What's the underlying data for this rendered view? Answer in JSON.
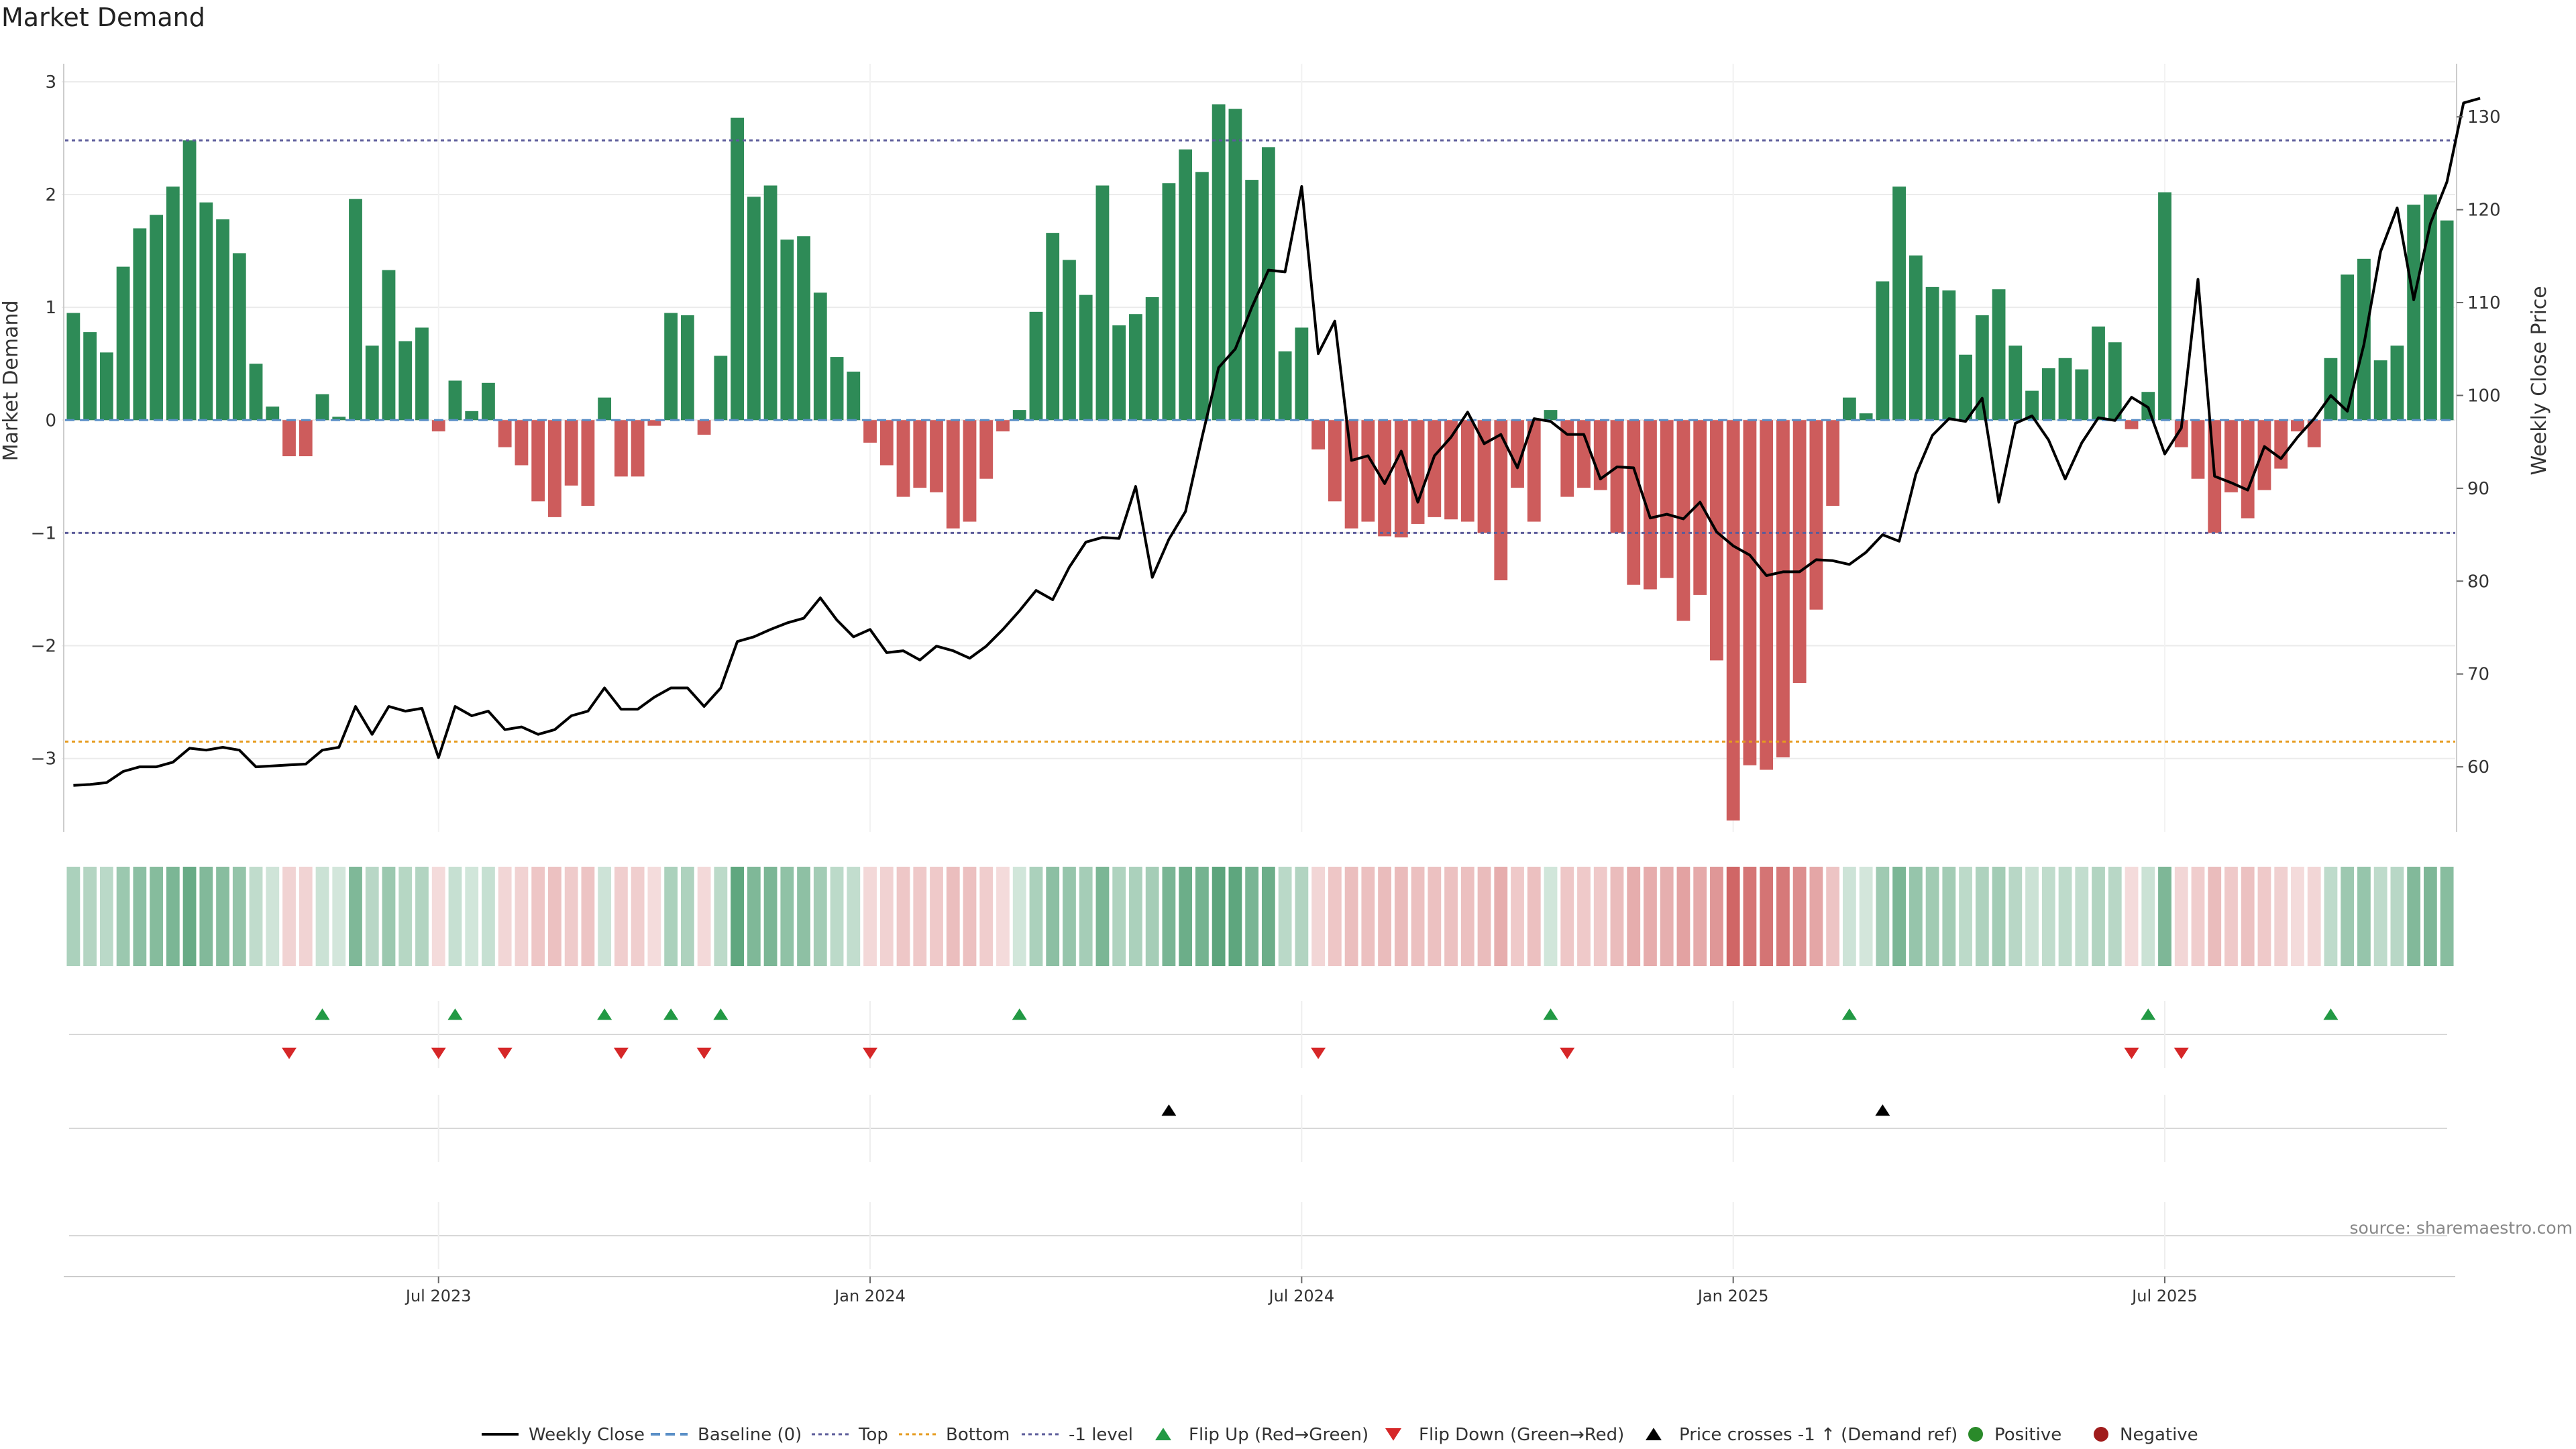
{
  "title": "Market Demand",
  "source": "source: sharemaestro.com",
  "colors": {
    "pos": "#2e8b57",
    "neg": "#cd5c5c",
    "top": "#5b5b9a",
    "bottom": "#e69b1e",
    "minus1": "#5b5b9a",
    "up": "#229944",
    "down": "#d62728",
    "price": "#000000"
  },
  "chart_data": {
    "type": "bar",
    "title": "Market Demand",
    "ylabel_left": "Market Demand",
    "ylabel_right": "Weekly Close Price",
    "ylim_left": [
      -3.65,
      3.1
    ],
    "ylim_right": [
      53,
      135
    ],
    "yticks_left": [
      3,
      2,
      1,
      0,
      -1,
      -2,
      -3
    ],
    "yticks_left_labels": [
      "3",
      "2",
      "1",
      "0",
      "−1",
      "−2",
      "−3"
    ],
    "yticks_right": [
      60,
      70,
      80,
      90,
      100,
      110,
      120,
      130
    ],
    "levels": {
      "baseline": 0,
      "top": 2.48,
      "bottom": -2.85,
      "minus_one": -1
    },
    "x_ticks": [
      {
        "index": 22,
        "label": "Jul 2023"
      },
      {
        "index": 48,
        "label": "Jan 2024"
      },
      {
        "index": 74,
        "label": "Jul 2024"
      },
      {
        "index": 100,
        "label": "Jan 2025"
      },
      {
        "index": 126,
        "label": "Jul 2025"
      }
    ],
    "weeks": 144,
    "demand": [
      0.95,
      0.78,
      0.6,
      1.36,
      1.7,
      1.82,
      2.07,
      2.48,
      1.93,
      1.78,
      1.48,
      0.5,
      0.12,
      -0.32,
      -0.32,
      0.23,
      0.03,
      1.96,
      0.66,
      1.33,
      0.7,
      0.82,
      -0.1,
      0.35,
      0.08,
      0.33,
      -0.24,
      -0.4,
      -0.72,
      -0.86,
      -0.58,
      -0.76,
      0.2,
      -0.5,
      -0.5,
      -0.05,
      0.95,
      0.93,
      -0.13,
      0.57,
      2.68,
      1.98,
      2.08,
      1.6,
      1.63,
      1.13,
      0.56,
      0.43,
      -0.2,
      -0.4,
      -0.68,
      -0.6,
      -0.64,
      -0.96,
      -0.9,
      -0.52,
      -0.1,
      0.09,
      0.96,
      1.66,
      1.42,
      1.11,
      2.08,
      0.84,
      0.94,
      1.09,
      2.1,
      2.4,
      2.2,
      2.8,
      2.76,
      2.13,
      2.42,
      0.61,
      0.82,
      -0.26,
      -0.72,
      -0.96,
      -0.9,
      -1.03,
      -1.04,
      -0.92,
      -0.86,
      -0.88,
      -0.9,
      -1.0,
      -1.42,
      -0.6,
      -0.9,
      0.09,
      -0.68,
      -0.6,
      -0.62,
      -1.0,
      -1.46,
      -1.5,
      -1.4,
      -1.78,
      -1.55,
      -2.13,
      -3.55,
      -3.06,
      -3.1,
      -2.99,
      -2.33,
      -1.68,
      -0.76,
      0.2,
      0.06,
      1.23,
      2.07,
      1.46,
      1.18,
      1.15,
      0.58,
      0.93,
      1.16,
      0.66,
      0.26,
      0.46,
      0.55,
      0.45,
      0.83,
      0.69,
      -0.08,
      0.25,
      2.02,
      -0.24,
      -0.52,
      -1.0,
      -0.64,
      -0.87,
      -0.62,
      -0.43,
      -0.1,
      -0.24,
      0.55,
      1.29,
      1.43,
      0.53,
      0.66,
      1.91,
      2.0,
      1.77
    ],
    "price": [
      58,
      58.1,
      58.3,
      59.5,
      60,
      60,
      60.5,
      62,
      61.8,
      62.1,
      61.8,
      60,
      60.1,
      60.2,
      60.3,
      61.8,
      62.1,
      66.5,
      63.5,
      66.5,
      66,
      66.3,
      61,
      66.5,
      65.5,
      66,
      64,
      64.3,
      63.5,
      64,
      65.5,
      66,
      68.5,
      66.2,
      66.2,
      67.5,
      68.5,
      68.5,
      66.5,
      68.5,
      73.5,
      74,
      74.8,
      75.5,
      76,
      78.2,
      75.8,
      74,
      74.8,
      72.3,
      72.5,
      71.5,
      73,
      72.5,
      71.7,
      73,
      74.8,
      76.8,
      79,
      78,
      81.5,
      84.2,
      84.7,
      84.6,
      90.2,
      80.4,
      84.5,
      87.5,
      95.5,
      103,
      105,
      109.5,
      113.5,
      113.3,
      122.5,
      104.5,
      108,
      93,
      93.5,
      90.5,
      94,
      88.5,
      93.5,
      95.5,
      98.2,
      94.8,
      95.8,
      92.2,
      97.5,
      97.2,
      95.8,
      95.8,
      91,
      92.3,
      92.2,
      86.8,
      87.2,
      86.7,
      88.5,
      85.3,
      83.8,
      82.8,
      80.6,
      81,
      81,
      82.3,
      82.2,
      81.8,
      83.1,
      85,
      84.3,
      91.5,
      95.7,
      97.5,
      97.2,
      99.7,
      88.5,
      97,
      97.8,
      95.2,
      91,
      94.9,
      97.6,
      97.3,
      99.8,
      98.7,
      93.7,
      96.5,
      112.5,
      91.3,
      90.6,
      89.8,
      94.5,
      93.2,
      95.5,
      97.5,
      100,
      98.3,
      105.5,
      115.5,
      120.2,
      110.3,
      118.5,
      123,
      131.5,
      132
    ]
  },
  "flip_up": [
    15,
    23,
    32,
    36,
    39,
    57,
    89,
    107,
    125,
    136
  ],
  "flip_down": [
    13,
    22,
    26,
    33,
    38,
    48,
    75,
    90,
    124,
    127
  ],
  "price_cross": [
    66,
    109
  ],
  "legend": [
    {
      "key": "weekly_close",
      "label": "Weekly Close"
    },
    {
      "key": "baseline",
      "label": "Baseline (0)"
    },
    {
      "key": "top",
      "label": "Top"
    },
    {
      "key": "bottom",
      "label": "Bottom"
    },
    {
      "key": "minus1",
      "label": "-1 level"
    },
    {
      "key": "flip_up",
      "label": "Flip Up (Red→Green)"
    },
    {
      "key": "flip_down",
      "label": "Flip Down (Green→Red)"
    },
    {
      "key": "price_cross",
      "label": "Price crosses -1 ↑ (Demand ref)"
    },
    {
      "key": "positive",
      "label": "Positive"
    },
    {
      "key": "negative",
      "label": "Negative"
    }
  ]
}
